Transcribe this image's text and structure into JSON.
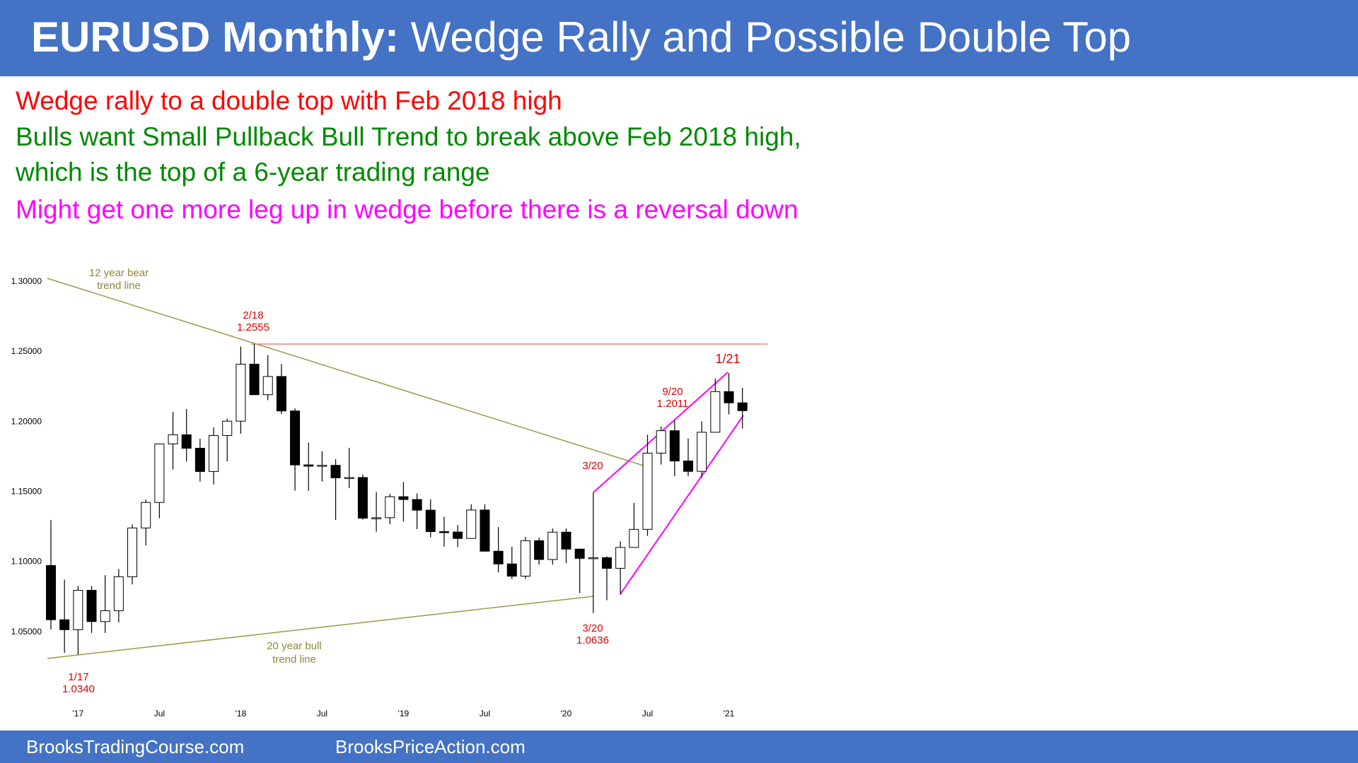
{
  "header": {
    "title_bold": "EURUSD Monthly:",
    "title_rest": "Wedge Rally and Possible Double Top"
  },
  "notes": [
    {
      "text": "Wedge rally to a double top with Feb 2018 high",
      "color": "#ff0000"
    },
    {
      "text": "Bulls want Small Pullback Bull Trend to break above Feb 2018 high,",
      "color": "#008a00"
    },
    {
      "text": "which is the top of a 6-year trading range",
      "color": "#008a00"
    },
    {
      "text": "Might get one more leg up in wedge before there is a reversal down",
      "color": "#ff00ff"
    }
  ],
  "footer": [
    "BrooksTradingCourse.com",
    "BrooksPriceAction.com"
  ],
  "chart_data": {
    "type": "candlestick",
    "categories": [
      null,
      null,
      "'17",
      null,
      null,
      null,
      null,
      null,
      "Jul",
      null,
      null,
      null,
      null,
      null,
      "'18",
      null,
      null,
      null,
      null,
      null,
      "Jul",
      null,
      null,
      null,
      null,
      null,
      "'19",
      null,
      null,
      null,
      null,
      null,
      "Jul",
      null,
      null,
      null,
      null,
      null,
      "'20",
      null,
      null,
      null,
      null,
      null,
      "Jul",
      null,
      null,
      null,
      null,
      null,
      "'21",
      null
    ],
    "open": [
      1.0975,
      1.0588,
      1.0517,
      1.0798,
      1.0575,
      1.0652,
      1.0895,
      1.1243,
      1.1425,
      1.1843,
      1.1908,
      1.1812,
      1.1646,
      1.1903,
      1.2005,
      1.2412,
      1.2194,
      1.2324,
      1.2078,
      1.1693,
      1.1684,
      1.169,
      1.1601,
      1.1603,
      1.1313,
      1.1316,
      1.1466,
      1.1446,
      1.137,
      1.1217,
      1.1214,
      1.1168,
      1.1371,
      1.1077,
      1.0986,
      1.0899,
      1.1152,
      1.1018,
      1.1213,
      1.1092,
      1.1026,
      1.1031,
      1.0955,
      1.1104,
      1.1233,
      1.1777,
      1.1937,
      1.1721,
      1.1647,
      1.1926,
      1.2216,
      1.2136
    ],
    "high": [
      1.13,
      1.0874,
      1.0829,
      1.0829,
      1.0906,
      1.095,
      1.1268,
      1.1446,
      1.1846,
      1.207,
      1.2092,
      1.188,
      1.1961,
      1.2023,
      1.2537,
      1.2555,
      1.2476,
      1.2414,
      1.2096,
      1.1852,
      1.179,
      1.1733,
      1.1815,
      1.1625,
      1.15,
      1.1486,
      1.157,
      1.1489,
      1.1448,
      1.1324,
      1.1264,
      1.1412,
      1.1412,
      1.1249,
      1.1109,
      1.1179,
      1.1175,
      1.1239,
      1.1239,
      1.1096,
      1.1496,
      1.1039,
      1.1147,
      1.1422,
      1.1909,
      1.1966,
      1.2011,
      1.1881,
      1.2003,
      1.231,
      1.2349,
      1.2243
    ],
    "low": [
      1.0518,
      1.0352,
      1.034,
      1.0494,
      1.0494,
      1.057,
      1.084,
      1.1119,
      1.1312,
      1.1662,
      1.1717,
      1.1574,
      1.1554,
      1.1718,
      1.1916,
      1.2206,
      1.2155,
      1.2055,
      1.151,
      1.1508,
      1.1574,
      1.1301,
      1.1527,
      1.1302,
      1.1216,
      1.1269,
      1.1289,
      1.1234,
      1.1176,
      1.111,
      1.1107,
      1.1181,
      1.1101,
      1.0926,
      1.0879,
      1.0879,
      1.0981,
      1.0981,
      1.0992,
      1.0778,
      1.0636,
      1.0727,
      1.0767,
      1.1112,
      1.1186,
      1.1696,
      1.1612,
      1.1612,
      1.1602,
      1.1925,
      1.2054,
      1.1953
    ],
    "close": [
      1.0588,
      1.0517,
      1.0798,
      1.0575,
      1.0652,
      1.0895,
      1.1243,
      1.1425,
      1.1843,
      1.1908,
      1.1812,
      1.1646,
      1.1903,
      1.2005,
      1.2412,
      1.2194,
      1.2324,
      1.2078,
      1.1693,
      1.1684,
      1.169,
      1.1601,
      1.1603,
      1.1313,
      1.1316,
      1.1466,
      1.1446,
      1.137,
      1.1217,
      1.1214,
      1.1168,
      1.1371,
      1.1077,
      1.0986,
      1.0899,
      1.1152,
      1.1018,
      1.1213,
      1.1092,
      1.1026,
      1.1031,
      1.0955,
      1.1104,
      1.1233,
      1.1777,
      1.1937,
      1.1721,
      1.1647,
      1.1926,
      1.2216,
      1.2136,
      1.208
    ],
    "up_color": "#ffffff",
    "down_color": "#000000",
    "ylim": [
      1.01,
      1.31
    ],
    "yticks": [
      {
        "value": 1.05,
        "label": "1.05000"
      },
      {
        "value": 1.1,
        "label": "1.10000"
      },
      {
        "value": 1.15,
        "label": "1.15000"
      },
      {
        "value": 1.2,
        "label": "1.20000"
      },
      {
        "value": 1.25,
        "label": "1.25000"
      },
      {
        "value": 1.3,
        "label": "1.30000"
      }
    ],
    "grid": false,
    "annotations": [
      {
        "lines": [
          "12 year bear",
          "trend line"
        ]
      },
      {
        "lines": [
          "2/18",
          "1.2555"
        ]
      },
      {
        "lines": [
          "1/21"
        ]
      },
      {
        "lines": [
          "9/20",
          "1.2011"
        ]
      },
      {
        "lines": [
          "3/20"
        ]
      },
      {
        "lines": [
          "3/20",
          "1.0636"
        ]
      },
      {
        "lines": [
          "20 year bull",
          "trend line"
        ]
      },
      {
        "lines": [
          "1/17",
          "1.0340"
        ]
      }
    ]
  }
}
